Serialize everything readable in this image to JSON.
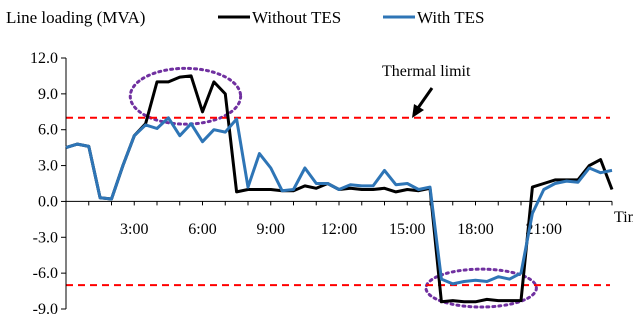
{
  "chart_data": {
    "type": "line",
    "title": "Line loading (MVA)",
    "xlabel": "Time",
    "ylabel": "",
    "ylim": [
      -9,
      12
    ],
    "yticks": [
      "12.0",
      "9.0",
      "6.0",
      "3.0",
      "0.0",
      "-3.0",
      "-6.0",
      "-9.0"
    ],
    "xticks": [
      {
        "label": "3:00",
        "x": 3
      },
      {
        "label": "6:00",
        "x": 6
      },
      {
        "label": "9:00",
        "x": 9
      },
      {
        "label": "12:00",
        "x": 12
      },
      {
        "label": "15:00",
        "x": 15
      },
      {
        "label": "18:00",
        "x": 18
      },
      {
        "label": "21:00",
        "x": 21
      }
    ],
    "xlim": [
      0,
      24
    ],
    "grid": false,
    "legend_position": "top",
    "annotations": [
      {
        "text": "Thermal limit"
      }
    ],
    "reference_lines": [
      {
        "value": 7,
        "style": "dashed",
        "color": "#ff0000"
      },
      {
        "value": -7,
        "style": "dashed",
        "color": "#ff0000"
      }
    ],
    "highlights": [
      {
        "x": [
          3,
          7.5
        ],
        "y": [
          6.8,
          10.8
        ],
        "color": "#7030a0"
      },
      {
        "x": [
          16,
          20.5
        ],
        "y": [
          -8.5,
          -6.0
        ],
        "color": "#7030a0"
      }
    ],
    "series": [
      {
        "name": "Without TES",
        "color": "#000000",
        "x": [
          0,
          0.5,
          1,
          1.5,
          2,
          2.5,
          3,
          3.5,
          4,
          4.5,
          5,
          5.5,
          6,
          6.5,
          7,
          7.5,
          8,
          8.5,
          9,
          9.5,
          10,
          10.5,
          11,
          11.5,
          12,
          12.5,
          13,
          13.5,
          14,
          14.5,
          15,
          15.5,
          16,
          16.5,
          17,
          17.5,
          18,
          18.5,
          19,
          19.5,
          20,
          20.5,
          21,
          21.5,
          22,
          22.5,
          23,
          23.5,
          24
        ],
        "values": [
          4.5,
          4.8,
          4.6,
          0.3,
          0.2,
          3.0,
          5.5,
          6.5,
          10.0,
          10.0,
          10.4,
          10.5,
          7.5,
          10.0,
          9.0,
          0.8,
          1.0,
          1.0,
          1.0,
          0.9,
          0.9,
          1.3,
          1.1,
          1.5,
          1.0,
          1.1,
          1.0,
          1.0,
          1.1,
          0.8,
          1.0,
          0.9,
          1.1,
          -8.4,
          -8.3,
          -8.4,
          -8.4,
          -8.2,
          -8.3,
          -8.3,
          -8.3,
          1.2,
          1.5,
          1.8,
          1.8,
          1.8,
          3.0,
          3.5,
          1.0
        ]
      },
      {
        "name": "With TES",
        "color": "#2e75b6",
        "x": [
          0,
          0.5,
          1,
          1.5,
          2,
          2.5,
          3,
          3.5,
          4,
          4.5,
          5,
          5.5,
          6,
          6.5,
          7,
          7.5,
          8,
          8.5,
          9,
          9.5,
          10,
          10.5,
          11,
          11.5,
          12,
          12.5,
          13,
          13.5,
          14,
          14.5,
          15,
          15.5,
          16,
          16.5,
          17,
          17.5,
          18,
          18.5,
          19,
          19.5,
          20,
          20.5,
          21,
          21.5,
          22,
          22.5,
          23,
          23.5,
          24
        ],
        "values": [
          4.5,
          4.8,
          4.6,
          0.3,
          0.2,
          3.0,
          5.5,
          6.4,
          6.1,
          7.0,
          5.5,
          6.5,
          5.0,
          6.0,
          5.8,
          6.9,
          1.2,
          4.0,
          2.8,
          0.9,
          1.0,
          2.8,
          1.5,
          1.5,
          1.0,
          1.4,
          1.3,
          1.3,
          2.6,
          1.4,
          1.5,
          1.0,
          1.2,
          -6.5,
          -6.9,
          -6.7,
          -6.6,
          -6.7,
          -6.3,
          -6.5,
          -6.0,
          -1.0,
          1.0,
          1.5,
          1.7,
          1.6,
          2.8,
          2.4,
          2.6
        ]
      }
    ]
  }
}
